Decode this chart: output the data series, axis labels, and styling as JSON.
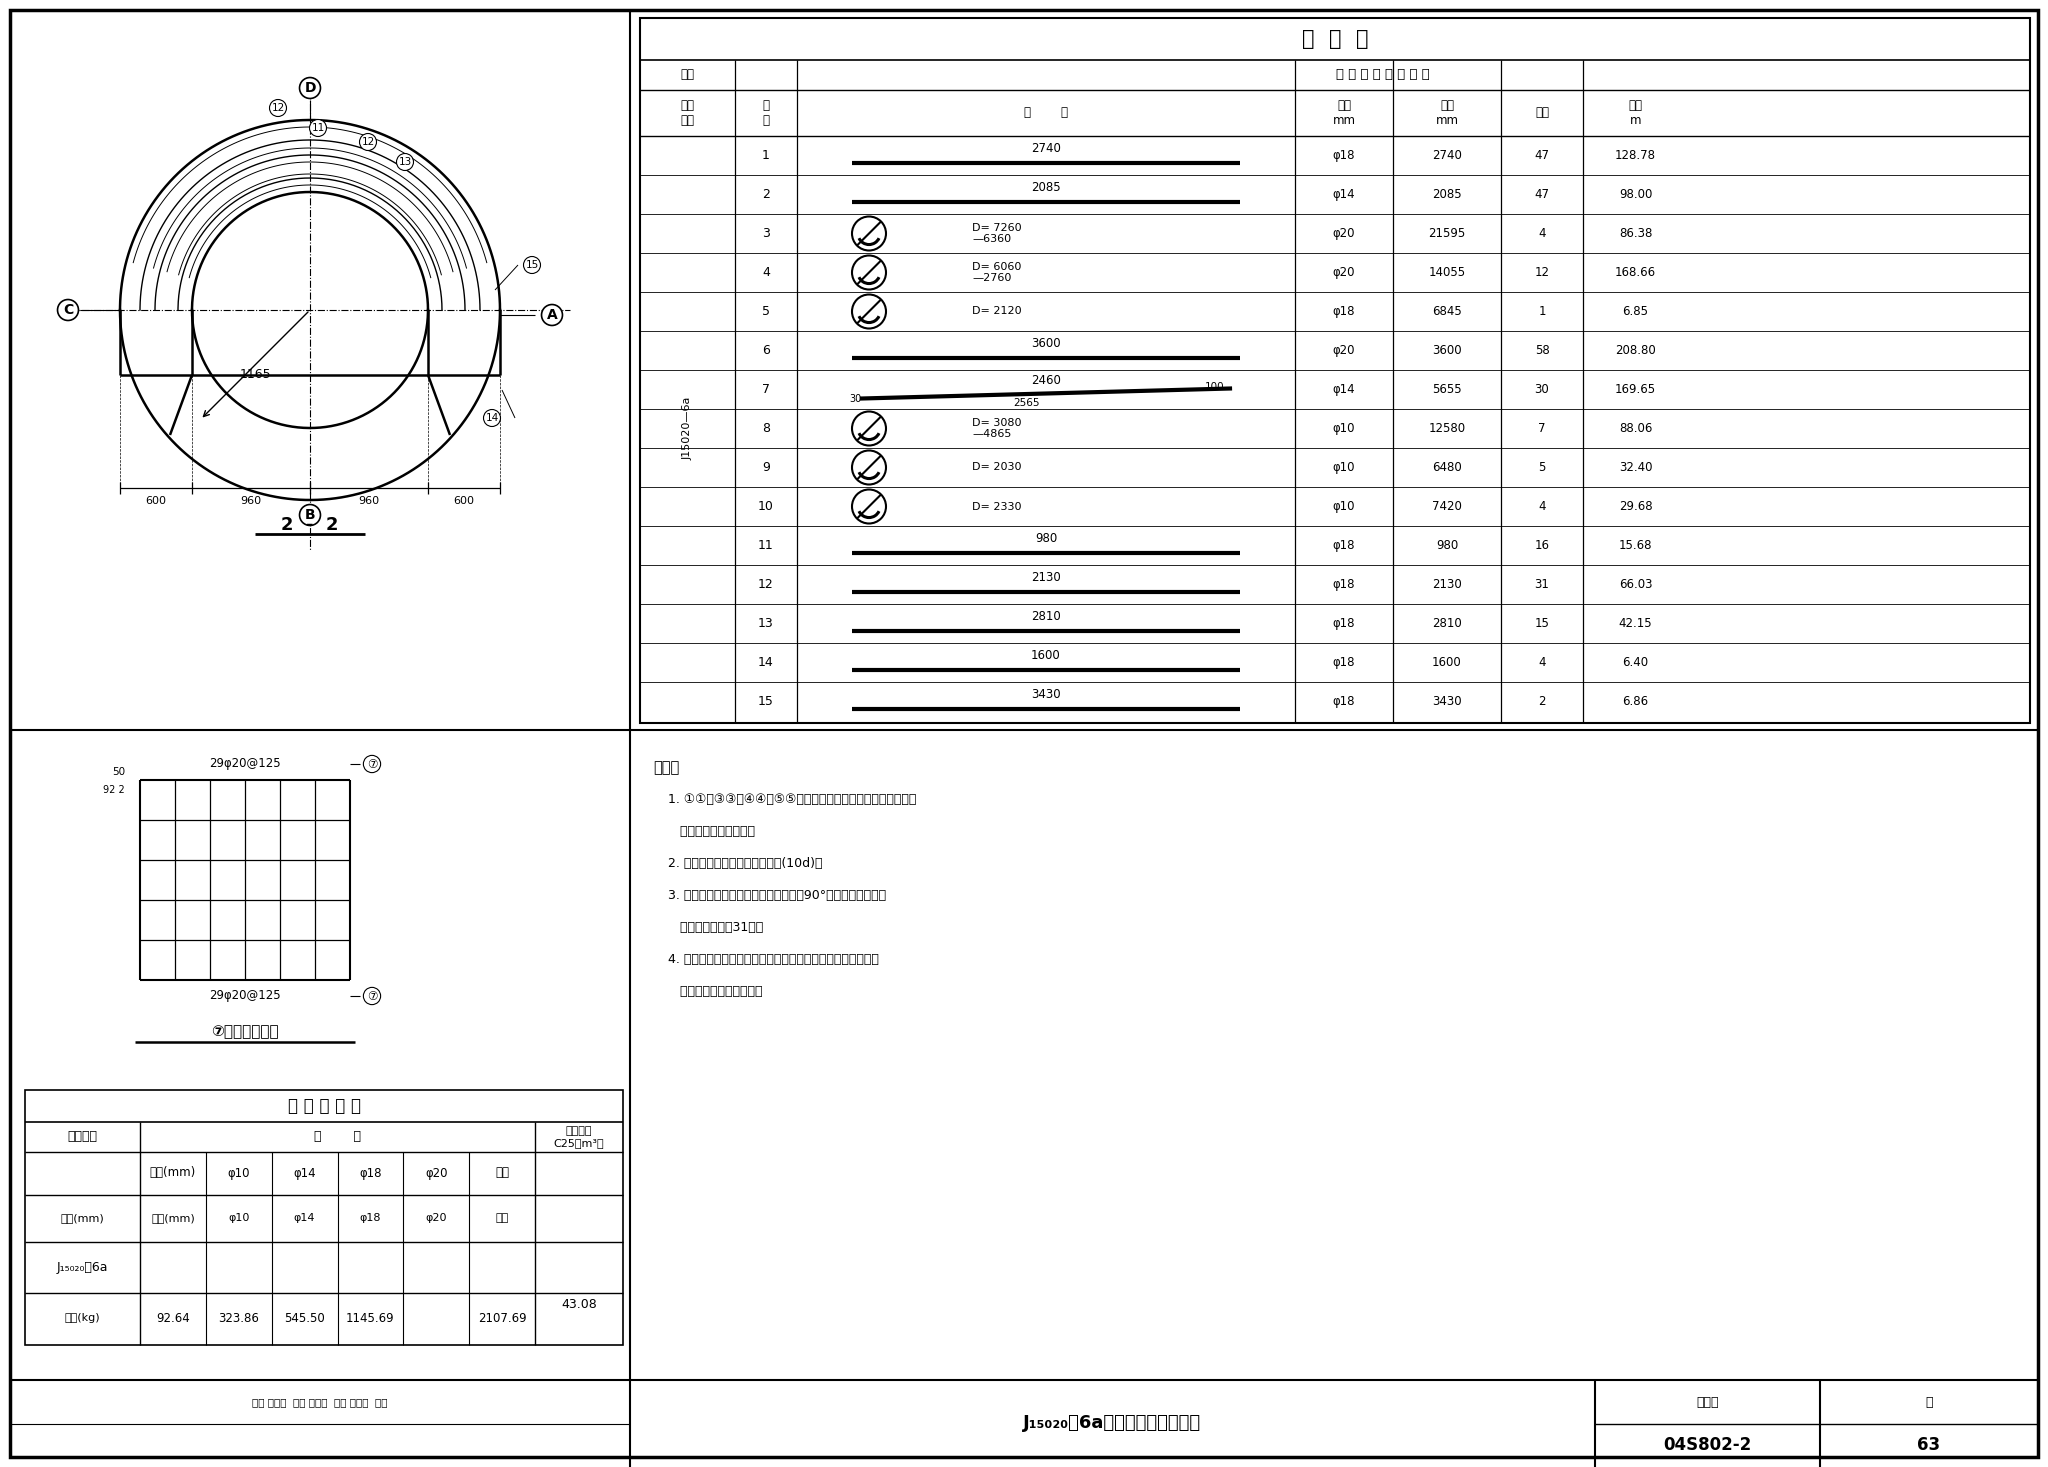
{
  "title": "04S802-2",
  "bg_color": "#ffffff",
  "border_color": "#000000",
  "rebar_table": {
    "title": "钢  筋  表",
    "rows": [
      {
        "no": 1,
        "shape": "line",
        "dim": "2740",
        "dia": "φ18",
        "len": "2740",
        "count": "47",
        "total": "128.78"
      },
      {
        "no": 2,
        "shape": "line",
        "dim": "2085",
        "dia": "φ14",
        "len": "2085",
        "count": "47",
        "total": "98.00"
      },
      {
        "no": 3,
        "shape": "circle_arc",
        "dim": "D= 7260\n—6360",
        "dia": "φ20",
        "len": "21595",
        "count": "4",
        "total": "86.38"
      },
      {
        "no": 4,
        "shape": "circle_arc",
        "dim": "D= 6060\n—2760",
        "dia": "φ20",
        "len": "14055",
        "count": "12",
        "total": "168.66"
      },
      {
        "no": 5,
        "shape": "circle_arc",
        "dim": "D= 2120",
        "dia": "φ18",
        "len": "6845",
        "count": "1",
        "total": "6.85"
      },
      {
        "no": 6,
        "shape": "line",
        "dim": "3600",
        "dia": "φ20",
        "len": "3600",
        "count": "58",
        "total": "208.80"
      },
      {
        "no": 7,
        "shape": "angled_line",
        "dim": "2460",
        "dia": "φ14",
        "len": "5655",
        "count": "30",
        "total": "169.65"
      },
      {
        "no": 8,
        "shape": "circle_arc",
        "dim": "D= 3080\n—4865",
        "dia": "φ10",
        "len": "12580",
        "count": "7",
        "total": "88.06"
      },
      {
        "no": 9,
        "shape": "circle_arc",
        "dim": "D= 2030",
        "dia": "φ10",
        "len": "6480",
        "count": "5",
        "total": "32.40"
      },
      {
        "no": 10,
        "shape": "circle_arc",
        "dim": "D= 2330",
        "dia": "φ10",
        "len": "7420",
        "count": "4",
        "total": "29.68"
      },
      {
        "no": 11,
        "shape": "line",
        "dim": "980",
        "dia": "φ18",
        "len": "980",
        "count": "16",
        "total": "15.68"
      },
      {
        "no": 12,
        "shape": "line",
        "dim": "2130",
        "dia": "φ18",
        "len": "2130",
        "count": "31",
        "total": "66.03"
      },
      {
        "no": 13,
        "shape": "line",
        "dim": "2810",
        "dia": "φ18",
        "len": "2810",
        "count": "15",
        "total": "42.15"
      },
      {
        "no": 14,
        "shape": "line",
        "dim": "1600",
        "dia": "φ18",
        "len": "1600",
        "count": "4",
        "total": "6.40"
      },
      {
        "no": 15,
        "shape": "line",
        "dim": "3430",
        "dia": "φ18",
        "len": "3430",
        "count": "2",
        "total": "6.86"
      }
    ]
  },
  "material_table": {
    "title": "材 料 用 量 表",
    "dia_headers": [
      "直径(mm)",
      "φ10",
      "φ14",
      "φ18",
      "φ20",
      "合计"
    ],
    "weight_vals": [
      "92.64",
      "323.86",
      "545.50",
      "1145.69",
      "",
      "2107.69"
    ],
    "concrete_value": "43.08"
  },
  "notes": [
    "说明：",
    "1. ①①－③③，④④与⑤⑤号钉筋交错排列，其埋入及伸出基础",
    "   顶面的长度见展开图。",
    "2. 环向钉筋的连接采用单面焊接(10d)。",
    "3. 水管伸入基础于杯口内壁下端设置的90°弯管支墩及基础预",
    "   留洞的加固筋见31页。",
    "4. 基坑开挖后，应请原勘察单位进行验槽，确认符合设计要求",
    "   后立即施工垫层和基础。"
  ],
  "title_block": {
    "main_title": "J₁₅₀₂₀－6a模板、配筋图（二）",
    "atlas_no": "04S802-2",
    "page": "63",
    "bottom_text": "审核 归州石  校对 陈显声  设计 王文涛  改期"
  }
}
